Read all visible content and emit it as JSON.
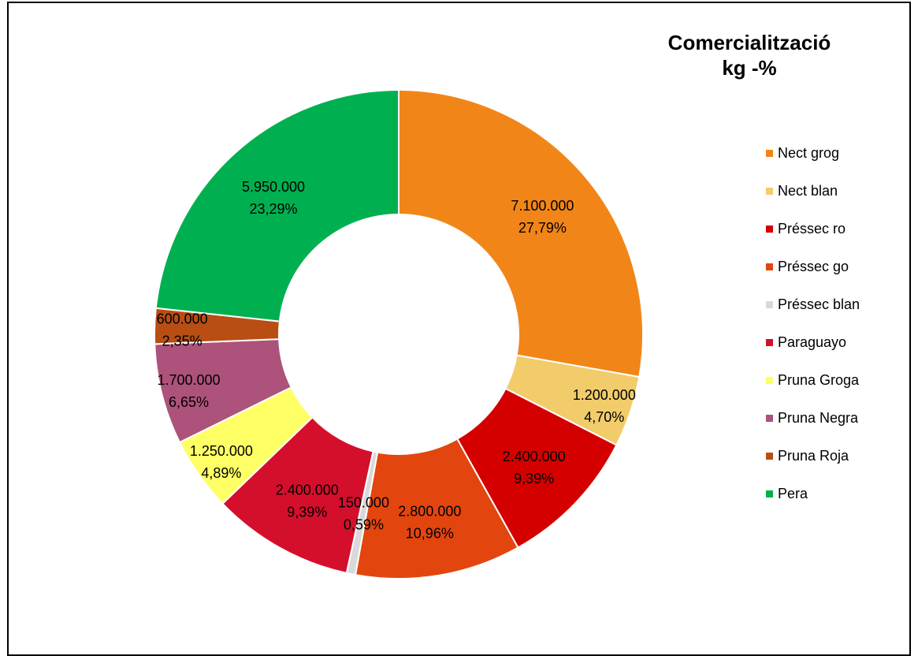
{
  "chart_data": {
    "type": "pie",
    "title_lines": [
      "Comercialització",
      "kg -%"
    ],
    "categories": [
      "Nect grog",
      "Nect blan",
      "Préssec ro",
      "Préssec go",
      "Préssec blan",
      "Paraguayo",
      "Pruna Groga",
      "Pruna Negra",
      "Pruna Roja",
      "Pera"
    ],
    "values": [
      7100000,
      1200000,
      2400000,
      2800000,
      150000,
      2400000,
      1250000,
      1700000,
      600000,
      5950000
    ],
    "value_labels": [
      "7.100.000",
      "1.200.000",
      "2.400.000",
      "2.800.000",
      "150.000",
      "2.400.000",
      "1.250.000",
      "1.700.000",
      "600.000",
      "5.950.000"
    ],
    "percent_labels": [
      "27,79%",
      "4,70%",
      "9,39%",
      "10,96%",
      "0,59%",
      "9,39%",
      "4,89%",
      "6,65%",
      "2,35%",
      "23,29%"
    ],
    "colors": [
      "#F28518",
      "#F2CC6B",
      "#D40000",
      "#E2460E",
      "#D9D9D9",
      "#D40F2C",
      "#FFFF66",
      "#AD527A",
      "#B84E14",
      "#00B050"
    ],
    "donut": true,
    "legend_position": "right"
  }
}
